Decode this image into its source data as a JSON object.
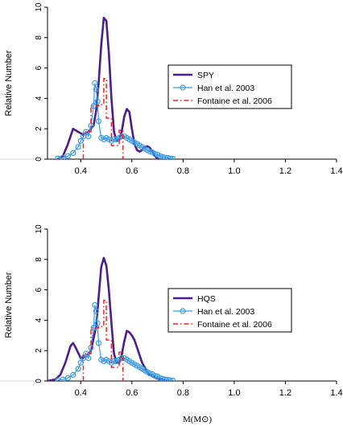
{
  "chart_data": [
    {
      "type": "line",
      "title": "",
      "xlabel": "",
      "ylabel": "Relative Number",
      "xlim": [
        0.27,
        1.4
      ],
      "ylim": [
        0,
        10
      ],
      "x_ticks": [
        0.4,
        0.6,
        0.8,
        1.0,
        1.2,
        1.4
      ],
      "x_tick_labels": [
        "0.4",
        "0.6",
        "0.8",
        "1.0",
        "1.2",
        "1.4"
      ],
      "y_ticks": [
        0,
        2,
        4,
        6,
        8,
        10
      ],
      "y_tick_labels": [
        "0",
        "2",
        "4",
        "6",
        "8",
        "10"
      ],
      "legend_position": "right",
      "series": [
        {
          "name": "SPY",
          "style": "solid",
          "color": "#4b1d8c",
          "points": [
            [
              0.31,
              0.0
            ],
            [
              0.33,
              0.2
            ],
            [
              0.35,
              1.0
            ],
            [
              0.37,
              2.0
            ],
            [
              0.39,
              1.8
            ],
            [
              0.41,
              1.6
            ],
            [
              0.43,
              1.8
            ],
            [
              0.45,
              2.2
            ],
            [
              0.46,
              3.2
            ],
            [
              0.47,
              5.0
            ],
            [
              0.48,
              7.5
            ],
            [
              0.49,
              9.3
            ],
            [
              0.5,
              9.1
            ],
            [
              0.51,
              7.0
            ],
            [
              0.52,
              4.0
            ],
            [
              0.53,
              1.8
            ],
            [
              0.54,
              1.2
            ],
            [
              0.55,
              1.3
            ],
            [
              0.56,
              1.8
            ],
            [
              0.57,
              2.8
            ],
            [
              0.58,
              3.3
            ],
            [
              0.59,
              3.1
            ],
            [
              0.6,
              2.0
            ],
            [
              0.61,
              1.0
            ],
            [
              0.62,
              0.6
            ],
            [
              0.63,
              0.5
            ],
            [
              0.64,
              0.6
            ],
            [
              0.65,
              0.8
            ],
            [
              0.66,
              0.85
            ],
            [
              0.67,
              0.75
            ],
            [
              0.68,
              0.5
            ],
            [
              0.69,
              0.2
            ],
            [
              0.7,
              0.05
            ],
            [
              0.72,
              0.0
            ]
          ]
        },
        {
          "name": "Han et al. 2003",
          "style": "solid-circles",
          "color": "#3b9be3",
          "points": [
            [
              0.31,
              0.05
            ],
            [
              0.33,
              0.1
            ],
            [
              0.35,
              0.2
            ],
            [
              0.37,
              0.4
            ],
            [
              0.39,
              0.8
            ],
            [
              0.4,
              1.2
            ],
            [
              0.41,
              1.5
            ],
            [
              0.42,
              1.8
            ],
            [
              0.43,
              1.5
            ],
            [
              0.44,
              2.2
            ],
            [
              0.45,
              3.5
            ],
            [
              0.455,
              5.0
            ],
            [
              0.46,
              4.6
            ],
            [
              0.465,
              3.8
            ],
            [
              0.47,
              2.5
            ],
            [
              0.48,
              1.4
            ],
            [
              0.49,
              1.3
            ],
            [
              0.5,
              1.4
            ],
            [
              0.51,
              1.3
            ],
            [
              0.52,
              1.2
            ],
            [
              0.53,
              1.3
            ],
            [
              0.54,
              1.3
            ],
            [
              0.55,
              1.4
            ],
            [
              0.56,
              1.5
            ],
            [
              0.57,
              1.5
            ],
            [
              0.58,
              1.4
            ],
            [
              0.59,
              1.3
            ],
            [
              0.6,
              1.2
            ],
            [
              0.61,
              1.1
            ],
            [
              0.62,
              1.0
            ],
            [
              0.63,
              0.9
            ],
            [
              0.64,
              0.8
            ],
            [
              0.65,
              0.7
            ],
            [
              0.66,
              0.6
            ],
            [
              0.67,
              0.5
            ],
            [
              0.68,
              0.45
            ],
            [
              0.69,
              0.35
            ],
            [
              0.7,
              0.3
            ],
            [
              0.71,
              0.2
            ],
            [
              0.72,
              0.15
            ],
            [
              0.73,
              0.1
            ],
            [
              0.74,
              0.08
            ],
            [
              0.75,
              0.05
            ],
            [
              0.76,
              0.03
            ]
          ]
        },
        {
          "name": "Fontaine et al. 2006",
          "style": "dashdot",
          "color": "#e8231e",
          "points": [
            [
              0.41,
              0.0
            ],
            [
              0.41,
              1.8
            ],
            [
              0.44,
              1.8
            ],
            [
              0.44,
              3.5
            ],
            [
              0.47,
              3.5
            ],
            [
              0.47,
              3.6
            ],
            [
              0.49,
              3.6
            ],
            [
              0.49,
              5.3
            ],
            [
              0.5,
              5.3
            ],
            [
              0.5,
              2.7
            ],
            [
              0.52,
              2.7
            ],
            [
              0.52,
              0.9
            ],
            [
              0.55,
              0.9
            ],
            [
              0.55,
              1.9
            ],
            [
              0.565,
              1.9
            ],
            [
              0.565,
              0.0
            ]
          ]
        }
      ]
    },
    {
      "type": "line",
      "title": "",
      "xlabel": "M(M⊙)",
      "ylabel": "Relative Number",
      "xlim": [
        0.27,
        1.4
      ],
      "ylim": [
        0,
        10
      ],
      "x_ticks": [
        0.4,
        0.6,
        0.8,
        1.0,
        1.2,
        1.4
      ],
      "x_tick_labels": [
        "0.4",
        "0.6",
        "0.8",
        "1.0",
        "1.2",
        "1.4"
      ],
      "y_ticks": [
        0,
        2,
        4,
        6,
        8,
        10
      ],
      "y_tick_labels": [
        "0",
        "2",
        "4",
        "6",
        "8",
        "10"
      ],
      "legend_position": "right",
      "series": [
        {
          "name": "HQS",
          "style": "solid",
          "color": "#4b1d8c",
          "points": [
            [
              0.27,
              0.0
            ],
            [
              0.3,
              0.1
            ],
            [
              0.32,
              0.4
            ],
            [
              0.34,
              1.2
            ],
            [
              0.36,
              2.3
            ],
            [
              0.37,
              2.5
            ],
            [
              0.38,
              2.2
            ],
            [
              0.4,
              1.5
            ],
            [
              0.42,
              1.6
            ],
            [
              0.44,
              2.0
            ],
            [
              0.45,
              2.8
            ],
            [
              0.46,
              3.6
            ],
            [
              0.47,
              5.5
            ],
            [
              0.48,
              7.5
            ],
            [
              0.49,
              8.1
            ],
            [
              0.5,
              7.6
            ],
            [
              0.51,
              6.0
            ],
            [
              0.52,
              3.8
            ],
            [
              0.53,
              1.8
            ],
            [
              0.54,
              1.2
            ],
            [
              0.55,
              1.2
            ],
            [
              0.56,
              1.7
            ],
            [
              0.57,
              2.6
            ],
            [
              0.58,
              3.3
            ],
            [
              0.59,
              3.2
            ],
            [
              0.6,
              3.0
            ],
            [
              0.61,
              2.7
            ],
            [
              0.62,
              2.2
            ],
            [
              0.63,
              1.7
            ],
            [
              0.64,
              1.2
            ],
            [
              0.65,
              0.9
            ],
            [
              0.66,
              0.6
            ],
            [
              0.67,
              0.4
            ],
            [
              0.68,
              0.3
            ],
            [
              0.7,
              0.15
            ],
            [
              0.72,
              0.05
            ],
            [
              0.74,
              0.0
            ]
          ]
        },
        {
          "name": "Han et al. 2003",
          "style": "solid-circles",
          "color": "#3b9be3",
          "points": [
            [
              0.31,
              0.05
            ],
            [
              0.33,
              0.1
            ],
            [
              0.35,
              0.2
            ],
            [
              0.37,
              0.4
            ],
            [
              0.39,
              0.8
            ],
            [
              0.4,
              1.2
            ],
            [
              0.41,
              1.5
            ],
            [
              0.42,
              1.8
            ],
            [
              0.43,
              1.5
            ],
            [
              0.44,
              2.2
            ],
            [
              0.45,
              3.5
            ],
            [
              0.455,
              5.0
            ],
            [
              0.46,
              4.6
            ],
            [
              0.465,
              3.8
            ],
            [
              0.47,
              2.5
            ],
            [
              0.48,
              1.4
            ],
            [
              0.49,
              1.3
            ],
            [
              0.5,
              1.4
            ],
            [
              0.51,
              1.3
            ],
            [
              0.52,
              1.2
            ],
            [
              0.53,
              1.3
            ],
            [
              0.54,
              1.3
            ],
            [
              0.55,
              1.4
            ],
            [
              0.56,
              1.5
            ],
            [
              0.57,
              1.5
            ],
            [
              0.58,
              1.4
            ],
            [
              0.59,
              1.3
            ],
            [
              0.6,
              1.2
            ],
            [
              0.61,
              1.1
            ],
            [
              0.62,
              1.0
            ],
            [
              0.63,
              0.9
            ],
            [
              0.64,
              0.8
            ],
            [
              0.65,
              0.7
            ],
            [
              0.66,
              0.6
            ],
            [
              0.67,
              0.5
            ],
            [
              0.68,
              0.45
            ],
            [
              0.69,
              0.35
            ],
            [
              0.7,
              0.3
            ],
            [
              0.71,
              0.2
            ],
            [
              0.72,
              0.15
            ],
            [
              0.73,
              0.1
            ],
            [
              0.74,
              0.08
            ],
            [
              0.75,
              0.05
            ],
            [
              0.76,
              0.03
            ]
          ]
        },
        {
          "name": "Fontaine et al. 2006",
          "style": "dashdot",
          "color": "#e8231e",
          "points": [
            [
              0.41,
              0.0
            ],
            [
              0.41,
              1.8
            ],
            [
              0.44,
              1.8
            ],
            [
              0.44,
              3.5
            ],
            [
              0.47,
              3.5
            ],
            [
              0.47,
              3.6
            ],
            [
              0.49,
              3.6
            ],
            [
              0.49,
              5.3
            ],
            [
              0.5,
              5.3
            ],
            [
              0.5,
              2.7
            ],
            [
              0.52,
              2.7
            ],
            [
              0.52,
              0.9
            ],
            [
              0.55,
              0.9
            ],
            [
              0.55,
              1.9
            ],
            [
              0.565,
              1.9
            ],
            [
              0.565,
              0.0
            ]
          ]
        }
      ]
    }
  ]
}
